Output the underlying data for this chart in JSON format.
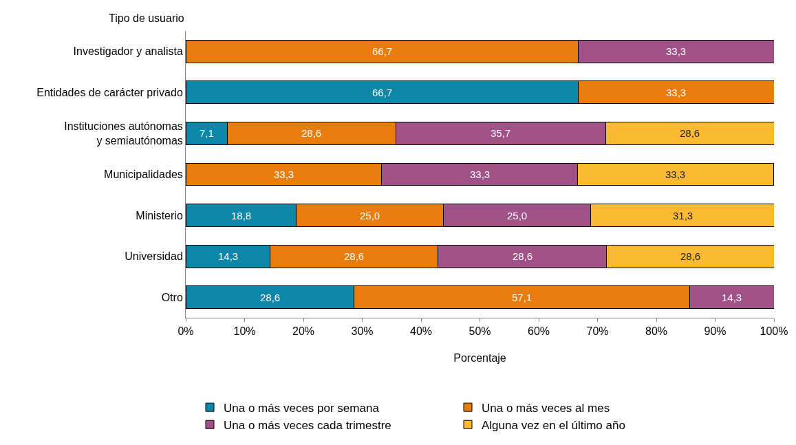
{
  "chart_data": {
    "type": "bar",
    "orientation": "horizontal",
    "stacked": true,
    "xlabel": "Porcentaje",
    "ylabel": "Tipo de usuario",
    "categories": [
      "Investigador y analista",
      "Entidades de carácter privado",
      "Instituciones autónomas\ny semiautónomas",
      "Municipalidades",
      "Ministerio",
      "Universidad",
      "Otro"
    ],
    "series": [
      {
        "name": "Una o más veces por semana",
        "color": "#0e86a8",
        "values": [
          null,
          66.7,
          7.1,
          null,
          18.8,
          14.3,
          28.6
        ],
        "value_labels": [
          null,
          "66,7",
          "7,1",
          null,
          "18,8",
          "14,3",
          "28,6"
        ]
      },
      {
        "name": "Una o más veces al mes",
        "color": "#e87d0d",
        "values": [
          66.7,
          33.3,
          28.6,
          33.3,
          25.0,
          28.6,
          57.1
        ],
        "value_labels": [
          "66,7",
          "33,3",
          "28,6",
          "33,3",
          "25,0",
          "28,6",
          "57,1"
        ]
      },
      {
        "name": "Una o más veces cada trimestre",
        "color": "#a05187",
        "values": [
          33.3,
          null,
          35.7,
          33.3,
          25.0,
          28.6,
          14.3
        ],
        "value_labels": [
          "33,3",
          null,
          "35,7",
          "33,3",
          "25,0",
          "28,6",
          "14,3"
        ]
      },
      {
        "name": "Alguna vez en el último año",
        "color": "#fbba31",
        "values": [
          null,
          null,
          28.6,
          33.3,
          31.3,
          28.6,
          null
        ],
        "value_labels": [
          null,
          null,
          "28,6",
          "33,3",
          "31,3",
          "28,6",
          null
        ]
      }
    ],
    "xlim": [
      0,
      100
    ],
    "xticks": [
      {
        "value": 0,
        "label": "0%"
      },
      {
        "value": 10,
        "label": "10%"
      },
      {
        "value": 20,
        "label": "20%"
      },
      {
        "value": 30,
        "label": "30%"
      },
      {
        "value": 40,
        "label": "40%"
      },
      {
        "value": 50,
        "label": "50%"
      },
      {
        "value": 60,
        "label": "60%"
      },
      {
        "value": 70,
        "label": "70%"
      },
      {
        "value": 80,
        "label": "80%"
      },
      {
        "value": 90,
        "label": "90%"
      },
      {
        "value": 100,
        "label": "100%"
      }
    ],
    "legend": "bottom"
  }
}
